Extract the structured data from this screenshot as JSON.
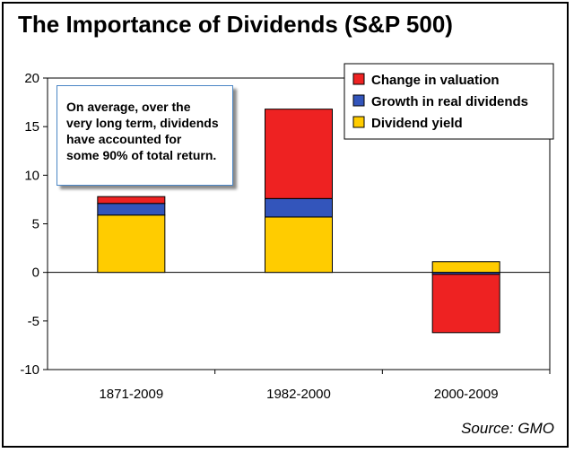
{
  "header": {
    "title": "The Importance of Dividends (S&P 500)"
  },
  "note": {
    "text": "On average, over the\nvery long term, dividends\nhave accounted for\nsome 90% of total return."
  },
  "source": "Source: GMO",
  "chart_data": {
    "type": "bar",
    "stacked": true,
    "categories": [
      "1871-2009",
      "1982-2000",
      "2000-2009"
    ],
    "series": [
      {
        "name": "Dividend yield",
        "values": [
          5.9,
          5.7,
          1.1
        ],
        "color": "#ffcc00"
      },
      {
        "name": "Growth in real dividends",
        "values": [
          1.2,
          1.9,
          -0.2
        ],
        "color": "#3355bb"
      },
      {
        "name": "Change in valuation",
        "values": [
          0.7,
          9.2,
          -6.0
        ],
        "color": "#ee2222"
      }
    ],
    "legend_order": [
      "Change in valuation",
      "Growth in real dividends",
      "Dividend yield"
    ],
    "y_ticks": [
      20,
      15,
      10,
      5,
      0,
      -5,
      -10
    ],
    "ylim": [
      -10,
      20
    ],
    "grid": false,
    "legend": "top-right"
  }
}
